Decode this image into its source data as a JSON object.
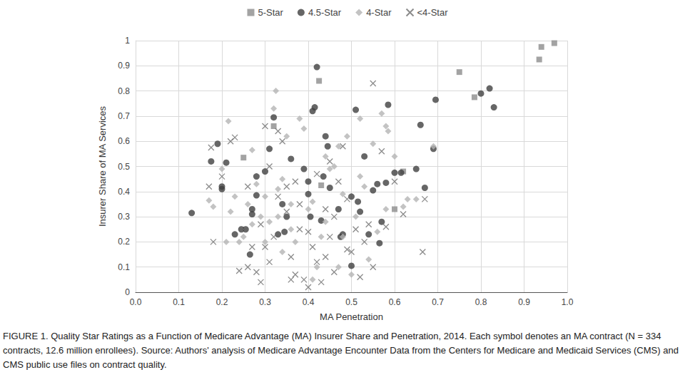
{
  "chart_data": {
    "type": "scatter",
    "xlabel": "MA Penetration",
    "ylabel": "Insurer Share of MA Services",
    "caption": "FIGURE 1. Quality Star Ratings as a Function of Medicare Advantage (MA) Insurer Share and Penetration, 2014. Each symbol denotes an MA contract (N = 334 contracts, 12.6 million enrollees). Source: Authors' analysis of Medicare Advantage Encounter Data from the Centers for Medicare and Medicaid Services (CMS) and CMS public use files on contract quality.",
    "xlim": [
      0,
      1
    ],
    "xticks": [
      {
        "value": 0,
        "label": "0.0"
      },
      0.1,
      0.2,
      0.3,
      0.4,
      0.5,
      0.6,
      0.7,
      0.8,
      0.9,
      {
        "value": 1,
        "label": "1.0"
      }
    ],
    "ylim": [
      0,
      1
    ],
    "yticks": [
      0,
      0.1,
      0.2,
      0.3,
      0.4,
      0.5,
      0.6,
      0.7,
      0.8,
      0.9,
      1
    ],
    "grid": true,
    "legend": "top",
    "series": [
      {
        "name": "5-Star",
        "color": "#8c8c8c",
        "marker": "square",
        "x": [
          0.32,
          0.25,
          0.425,
          0.43,
          0.62,
          0.6,
          0.75,
          0.785,
          0.935,
          0.94,
          0.97
        ],
        "values": [
          0.66,
          0.535,
          0.84,
          0.425,
          0.48,
          0.33,
          0.875,
          0.775,
          0.925,
          0.975,
          0.99
        ]
      },
      {
        "name": "4.5-Star",
        "color": "#404040",
        "marker": "circle",
        "x": [
          0.13,
          0.175,
          0.19,
          0.2,
          0.2,
          0.21,
          0.23,
          0.245,
          0.255,
          0.265,
          0.27,
          0.27,
          0.28,
          0.28,
          0.3,
          0.31,
          0.32,
          0.33,
          0.34,
          0.345,
          0.35,
          0.36,
          0.39,
          0.4,
          0.4,
          0.405,
          0.41,
          0.415,
          0.42,
          0.43,
          0.435,
          0.44,
          0.445,
          0.45,
          0.47,
          0.475,
          0.48,
          0.5,
          0.5,
          0.51,
          0.515,
          0.52,
          0.53,
          0.54,
          0.55,
          0.56,
          0.565,
          0.57,
          0.58,
          0.585,
          0.6,
          0.65,
          0.66,
          0.67,
          0.69,
          0.695,
          0.8,
          0.82,
          0.83,
          0.615
        ],
        "values": [
          0.315,
          0.52,
          0.59,
          0.41,
          0.42,
          0.515,
          0.23,
          0.25,
          0.25,
          0.15,
          0.33,
          0.31,
          0.46,
          0.385,
          0.48,
          0.57,
          0.695,
          0.23,
          0.35,
          0.24,
          0.3,
          0.53,
          0.49,
          0.44,
          0.39,
          0.3,
          0.72,
          0.735,
          0.895,
          0.285,
          0.46,
          0.62,
          0.58,
          0.415,
          0.33,
          0.22,
          0.23,
          0.105,
          0.38,
          0.725,
          0.36,
          0.32,
          0.54,
          0.23,
          0.405,
          0.43,
          0.195,
          0.28,
          0.435,
          0.745,
          0.475,
          0.49,
          0.665,
          0.415,
          0.57,
          0.765,
          0.79,
          0.81,
          0.735,
          0.475
        ]
      },
      {
        "name": "4-Star",
        "color": "#b4b4b4",
        "marker": "diamond",
        "x": [
          0.17,
          0.18,
          0.2,
          0.21,
          0.215,
          0.22,
          0.23,
          0.24,
          0.25,
          0.26,
          0.27,
          0.28,
          0.29,
          0.3,
          0.31,
          0.32,
          0.325,
          0.33,
          0.34,
          0.35,
          0.36,
          0.37,
          0.38,
          0.39,
          0.4,
          0.41,
          0.42,
          0.43,
          0.44,
          0.45,
          0.46,
          0.47,
          0.48,
          0.49,
          0.5,
          0.51,
          0.52,
          0.53,
          0.54,
          0.55,
          0.56,
          0.57,
          0.58,
          0.585,
          0.6,
          0.62,
          0.63,
          0.65,
          0.69,
          0.36,
          0.3,
          0.44,
          0.27,
          0.34,
          0.47,
          0.52,
          0.41,
          0.48,
          0.58,
          0.33
        ],
        "values": [
          0.365,
          0.34,
          0.49,
          0.2,
          0.68,
          0.32,
          0.38,
          0.2,
          0.22,
          0.35,
          0.565,
          0.43,
          0.3,
          0.38,
          0.28,
          0.73,
          0.8,
          0.41,
          0.45,
          0.62,
          0.35,
          0.2,
          0.69,
          0.65,
          0.33,
          0.05,
          0.1,
          0.22,
          0.54,
          0.49,
          0.5,
          0.58,
          0.39,
          0.62,
          0.07,
          0.3,
          0.69,
          0.42,
          0.13,
          0.59,
          0.24,
          0.71,
          0.66,
          0.64,
          0.54,
          0.34,
          0.37,
          0.37,
          0.58,
          0.25,
          0.2,
          0.28,
          0.27,
          0.16,
          0.1,
          0.46,
          0.36,
          0.22,
          0.33,
          0.3
        ]
      },
      {
        "name": "<4-Star",
        "color": "#6e6e6e",
        "marker": "x",
        "x": [
          0.17,
          0.175,
          0.18,
          0.2,
          0.22,
          0.23,
          0.24,
          0.25,
          0.26,
          0.27,
          0.28,
          0.29,
          0.3,
          0.3,
          0.31,
          0.32,
          0.33,
          0.34,
          0.35,
          0.36,
          0.37,
          0.38,
          0.39,
          0.4,
          0.41,
          0.42,
          0.43,
          0.44,
          0.45,
          0.46,
          0.47,
          0.48,
          0.49,
          0.5,
          0.51,
          0.52,
          0.53,
          0.54,
          0.55,
          0.55,
          0.57,
          0.58,
          0.6,
          0.62,
          0.665,
          0.67,
          0.35,
          0.38,
          0.42,
          0.45,
          0.33,
          0.29,
          0.46,
          0.4,
          0.37,
          0.26,
          0.31,
          0.49,
          0.44,
          0.36
        ],
        "values": [
          0.42,
          0.575,
          0.2,
          0.46,
          0.6,
          0.615,
          0.085,
          0.25,
          0.1,
          0.18,
          0.08,
          0.04,
          0.66,
          0.18,
          0.5,
          0.22,
          0.64,
          0.6,
          0.42,
          0.14,
          0.07,
          0.25,
          0.05,
          0.02,
          0.18,
          0.47,
          0.04,
          0.33,
          0.52,
          0.08,
          0.44,
          0.58,
          0.17,
          0.16,
          0.25,
          0.06,
          0.2,
          0.27,
          0.83,
          0.1,
          0.56,
          0.26,
          0.44,
          0.31,
          0.16,
          0.37,
          0.32,
          0.35,
          0.12,
          0.22,
          0.38,
          0.27,
          0.3,
          0.24,
          0.44,
          0.42,
          0.12,
          0.37,
          0.14,
          0.05
        ]
      }
    ]
  }
}
